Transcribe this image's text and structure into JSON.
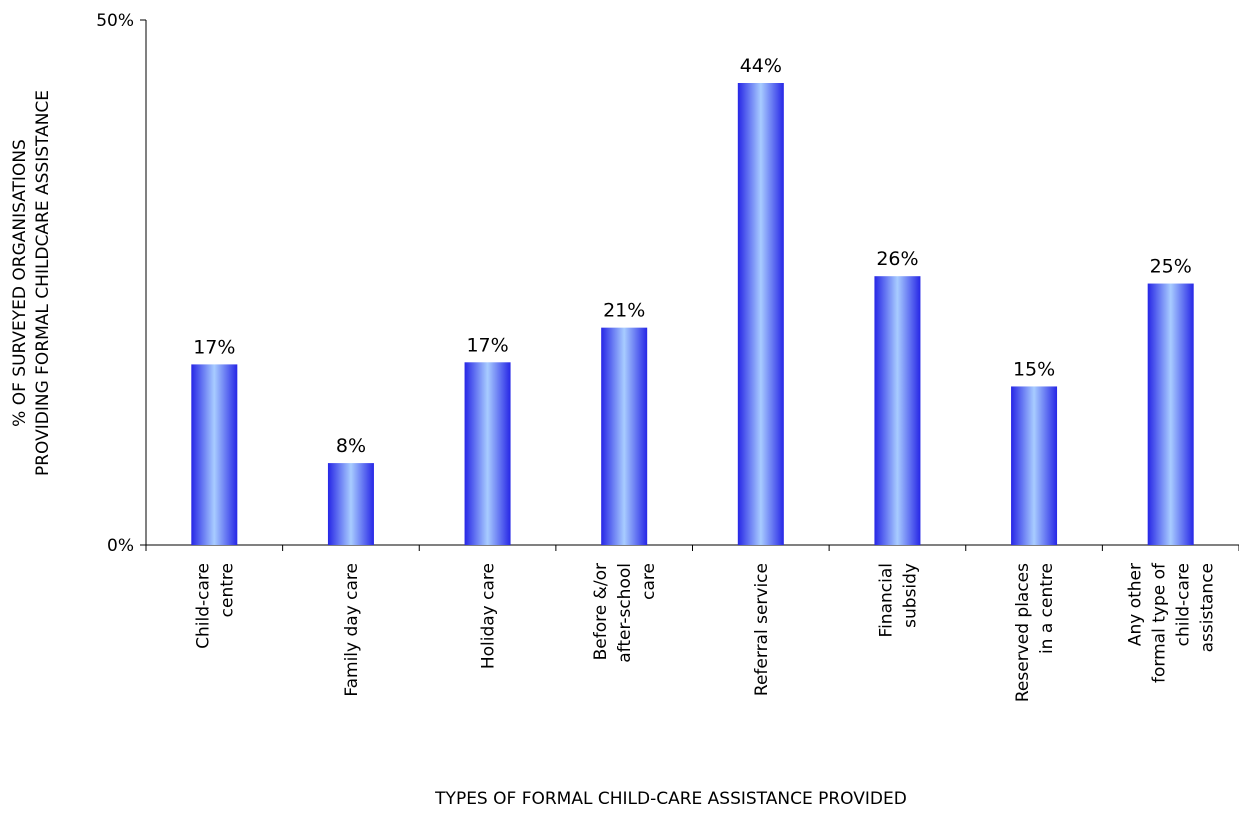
{
  "chart_data": {
    "type": "bar",
    "title": "",
    "xlabel": "TYPES OF FORMAL CHILD-CARE ASSISTANCE PROVIDED",
    "ylabel_lines": [
      "% OF SURVEYED ORGANISATIONS",
      "PROVIDING FORMAL CHILDCARE ASSISTANCE"
    ],
    "ylim": [
      0,
      50
    ],
    "y_tick_labels": [
      "0%",
      "50%"
    ],
    "y_tick_values": [
      0,
      50
    ],
    "grid": false,
    "legend": "none",
    "bar_color_edge": "#2626e6",
    "bar_color_center": "#a8ccff",
    "categories": [
      [
        "Child-care",
        "centre"
      ],
      [
        "Family day care"
      ],
      [
        "Holiday care"
      ],
      [
        "Before &/or",
        "after-school",
        "care"
      ],
      [
        "Referral service"
      ],
      [
        "Financial",
        "subsidy"
      ],
      [
        "Reserved places",
        "in a centre"
      ],
      [
        "Any other",
        "formal type of",
        "child-care",
        "assistance"
      ]
    ],
    "values": [
      17.2,
      7.8,
      17.4,
      20.7,
      44.0,
      25.6,
      15.1,
      24.9
    ],
    "data_labels": [
      "17%",
      "8%",
      "17%",
      "21%",
      "44%",
      "26%",
      "15%",
      "25%"
    ]
  }
}
